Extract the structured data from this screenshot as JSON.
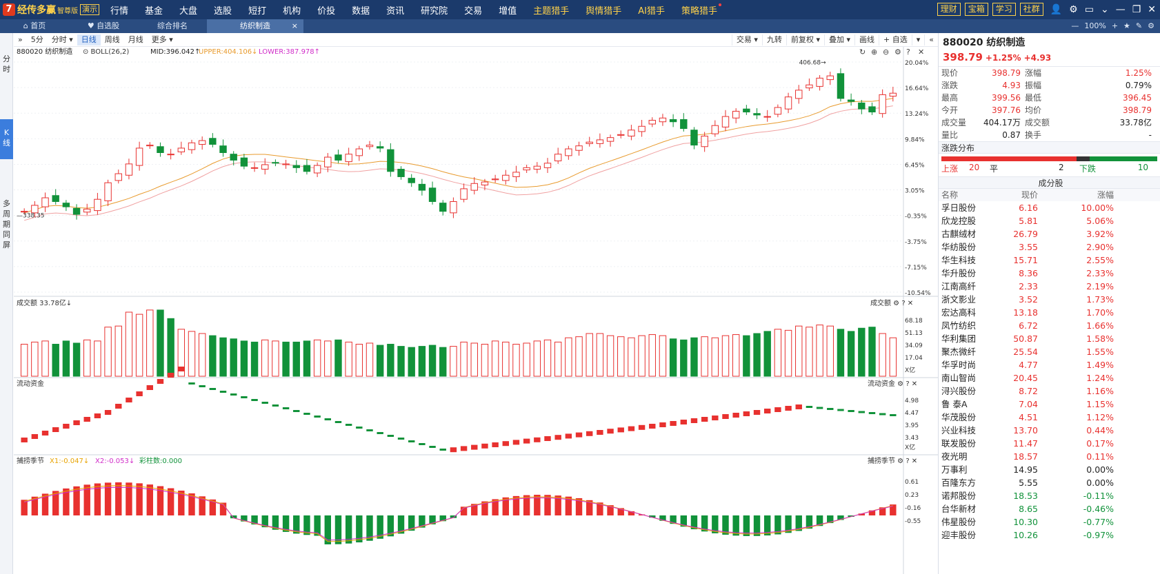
{
  "app": {
    "logo_mark": "7",
    "name": "经传多赢",
    "edition": "智尊版",
    "demo": "演示"
  },
  "nav": [
    "行情",
    "基金",
    "大盘",
    "选股",
    "短打",
    "机构",
    "价投",
    "数据",
    "资讯",
    "研究院",
    "交易",
    "增值",
    "主题猎手",
    "舆情猎手",
    "AI猎手",
    "策略猎手"
  ],
  "nav_highlight": [
    "主题猎手",
    "舆情猎手",
    "AI猎手",
    "策略猎手"
  ],
  "top_buttons": [
    "理财",
    "宝箱",
    "学习",
    "社群"
  ],
  "tabs": {
    "home": "首页",
    "fav": "自选股",
    "rank": "综合排名",
    "active": "纺织制造",
    "close": "×",
    "zoom": "100%"
  },
  "left_side": {
    "fs": "分时",
    "k": "K线",
    "multi": "多周期同屏"
  },
  "toolbar": {
    "left": [
      "»",
      "5分",
      "分时 ▾",
      "日线",
      "周线",
      "月线",
      "更多 ▾"
    ],
    "active": "日线",
    "right": [
      "交易 ▾",
      "九转",
      "前复权 ▾",
      "叠加 ▾",
      "画线",
      "+ 自选",
      "▾",
      "«"
    ]
  },
  "chart_info": {
    "code": "880020 纺织制造",
    "boll": "BOLL(26,2)",
    "mid": "MID:396.042",
    "upper": "UPPER:404.106",
    "lower": "LOWER:387.978"
  },
  "panels": {
    "vol": {
      "label": "成交额",
      "value": "33.78亿",
      "unit": "X亿",
      "ticks": [
        "68.18",
        "51.13",
        "34.09",
        "17.04"
      ]
    },
    "flow": {
      "label": "流动资金",
      "unit": "X亿",
      "ticks": [
        "4.98",
        "4.47",
        "3.95",
        "3.43"
      ]
    },
    "season": {
      "label": "捕捞季节",
      "x1": "X1:-0.047",
      "x2": "X2:-0.053",
      "bar": "彩柱数:0.000",
      "ticks": [
        "0.61",
        "0.23",
        "-0.16",
        "-0.55"
      ]
    }
  },
  "chart_data": {
    "type": "candlestick",
    "title": "880020 纺织制造",
    "y_axis_pct": [
      "20.04%",
      "16.64%",
      "13.24%",
      "9.84%",
      "6.45%",
      "3.05%",
      "-0.35%",
      "-3.75%",
      "-7.15%",
      "-10.54%"
    ],
    "high_label": "406.68",
    "low_label": "338.35",
    "indicators": [
      "MID",
      "UPPER",
      "LOWER"
    ]
  },
  "quote": {
    "code": "880020 纺织制造",
    "price": "398.79",
    "chg_pct": "+1.25%",
    "chg": "+4.93",
    "rows": [
      [
        "现价",
        "398.79",
        "涨幅",
        "1.25%",
        "red",
        "red"
      ],
      [
        "涨跌",
        "4.93",
        "振幅",
        "0.79%",
        "red",
        ""
      ],
      [
        "最高",
        "399.56",
        "最低",
        "396.45",
        "red",
        "red"
      ],
      [
        "今开",
        "397.76",
        "均价",
        "398.79",
        "red",
        "red"
      ],
      [
        "成交量",
        "404.17万",
        "成交额",
        "33.78亿",
        "",
        ""
      ],
      [
        "量比",
        "0.87",
        "换手",
        "-",
        "",
        ""
      ]
    ]
  },
  "dist": {
    "title": "涨跌分布",
    "up_label": "上涨",
    "up": "20",
    "flat_label": "平",
    "flat": "2",
    "down_label": "下跌",
    "down": "10"
  },
  "components": {
    "title": "成分股",
    "headers": [
      "名称",
      "现价",
      "涨幅"
    ],
    "rows": [
      [
        "孚日股份",
        "6.16",
        "10.00%"
      ],
      [
        "欣龙控股",
        "5.81",
        "5.06%"
      ],
      [
        "古麒绒材",
        "26.79",
        "3.92%"
      ],
      [
        "华纺股份",
        "3.55",
        "2.90%"
      ],
      [
        "华生科技",
        "15.71",
        "2.55%"
      ],
      [
        "华升股份",
        "8.36",
        "2.33%"
      ],
      [
        "江南高纤",
        "2.33",
        "2.19%"
      ],
      [
        "浙文影业",
        "3.52",
        "1.73%"
      ],
      [
        "宏达高科",
        "13.18",
        "1.70%"
      ],
      [
        "凤竹纺织",
        "6.72",
        "1.66%"
      ],
      [
        "华利集团",
        "50.87",
        "1.58%"
      ],
      [
        "聚杰微纤",
        "25.54",
        "1.55%"
      ],
      [
        "华孚时尚",
        "4.77",
        "1.49%"
      ],
      [
        "南山智尚",
        "20.45",
        "1.24%"
      ],
      [
        "浔兴股份",
        "8.72",
        "1.16%"
      ],
      [
        "鲁 泰A",
        "7.04",
        "1.15%"
      ],
      [
        "华茂股份",
        "4.51",
        "1.12%"
      ],
      [
        "兴业科技",
        "13.70",
        "0.44%"
      ],
      [
        "联发股份",
        "11.47",
        "0.17%"
      ],
      [
        "夜光明",
        "18.57",
        "0.11%"
      ],
      [
        "万事利",
        "14.95",
        "0.00%"
      ],
      [
        "百隆东方",
        "5.55",
        "0.00%"
      ],
      [
        "诺邦股份",
        "18.53",
        "-0.11%"
      ],
      [
        "台华新材",
        "8.65",
        "-0.46%"
      ],
      [
        "伟星股份",
        "10.30",
        "-0.77%"
      ],
      [
        "迎丰股份",
        "10.26",
        "-0.97%"
      ]
    ]
  },
  "colors": {
    "up": "#e8312f",
    "down": "#11923a",
    "topbar": "#1b3a6b",
    "accent": "#3b7ddd"
  }
}
